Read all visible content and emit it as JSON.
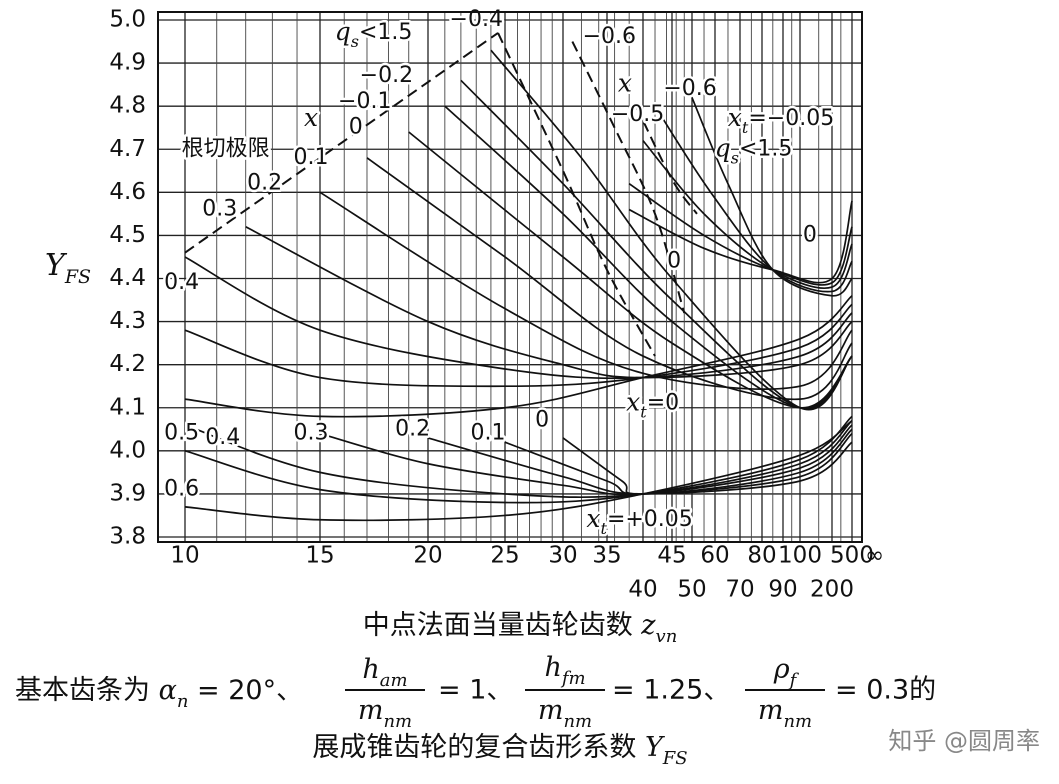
{
  "chart_data": {
    "type": "line",
    "line_color": "#111111",
    "grid": true,
    "xlim": [
      10,
      500
    ],
    "xticks": [
      10,
      15,
      20,
      25,
      30,
      35,
      40,
      45,
      50,
      60,
      70,
      80,
      90,
      100,
      200,
      500
    ],
    "x_minor_ticks": [
      11,
      12,
      13,
      14,
      16,
      17,
      18,
      19,
      21,
      22,
      23,
      24,
      26,
      27,
      28,
      29,
      32,
      34,
      36,
      38,
      42,
      44,
      46,
      48,
      55,
      65,
      75,
      85,
      95,
      150,
      300
    ],
    "x_end_label": "∞",
    "ylim": [
      3.8,
      5.0
    ],
    "yticks": [
      3.8,
      3.9,
      {
        "value": 4,
        "label": "4.0"
      },
      4.1,
      4.2,
      4.3,
      4.4,
      4.5,
      4.6,
      4.7,
      4.8,
      4.9,
      {
        "value": 5,
        "label": "5.0"
      }
    ],
    "ylabel": {
      "var": "Y",
      "sub": "FS"
    },
    "xlabel": {
      "text": "中点法面当量齿轮齿数 ",
      "var": "z",
      "sub": "vn"
    },
    "series": [
      {
        "x": [
          10,
          15,
          25,
          40,
          100,
          500
        ],
        "values": [
          3.87,
          3.84,
          3.85,
          3.9,
          3.99,
          4.07
        ],
        "dashed": false
      },
      {
        "x": [
          10,
          15,
          25,
          40,
          100,
          500
        ],
        "values": [
          4.0,
          3.91,
          3.88,
          3.9,
          3.98,
          4.08
        ],
        "dashed": false
      },
      {
        "x": [
          10,
          15,
          25,
          40,
          100,
          500
        ],
        "values": [
          4.06,
          3.95,
          3.9,
          3.9,
          3.97,
          4.07
        ],
        "dashed": false
      },
      {
        "x": [
          15,
          20,
          30,
          40,
          100,
          500
        ],
        "values": [
          4.04,
          3.97,
          3.92,
          3.9,
          3.96,
          4.06
        ],
        "dashed": false
      },
      {
        "x": [
          20,
          30,
          40,
          100,
          500
        ],
        "values": [
          4.03,
          3.94,
          3.9,
          3.95,
          4.05
        ],
        "dashed": false
      },
      {
        "x": [
          25,
          35,
          40,
          100,
          500
        ],
        "values": [
          4.02,
          3.93,
          3.9,
          3.94,
          4.04
        ],
        "dashed": false
      },
      {
        "x": [
          30,
          37,
          40,
          100,
          500
        ],
        "values": [
          4.03,
          3.93,
          3.9,
          3.93,
          4.02
        ],
        "dashed": false
      },
      {
        "x": [
          10,
          15,
          25,
          40,
          100,
          500
        ],
        "values": [
          4.12,
          4.08,
          4.1,
          4.17,
          4.26,
          4.36
        ],
        "dashed": false
      },
      {
        "x": [
          10,
          15,
          25,
          40,
          100,
          500
        ],
        "values": [
          4.28,
          4.17,
          4.15,
          4.17,
          4.24,
          4.34
        ],
        "dashed": false
      },
      {
        "x": [
          10,
          15,
          25,
          40,
          100,
          500
        ],
        "values": [
          4.45,
          4.28,
          4.19,
          4.17,
          4.22,
          4.32
        ],
        "dashed": false
      },
      {
        "x": [
          12,
          20,
          30,
          40,
          100,
          500
        ],
        "values": [
          4.52,
          4.3,
          4.2,
          4.17,
          4.2,
          4.3
        ],
        "dashed": false
      },
      {
        "x": [
          15,
          25,
          40,
          100,
          500
        ],
        "values": [
          4.6,
          4.33,
          4.18,
          4.15,
          4.28
        ],
        "dashed": false
      },
      {
        "x": [
          17,
          25,
          40,
          100,
          500
        ],
        "values": [
          4.68,
          4.45,
          4.22,
          4.12,
          4.25
        ],
        "dashed": false
      },
      {
        "x": [
          19,
          30,
          45,
          100,
          500
        ],
        "values": [
          4.74,
          4.45,
          4.25,
          4.1,
          4.22
        ],
        "dashed": false
      },
      {
        "x": [
          21,
          30,
          45,
          100,
          500
        ],
        "values": [
          4.8,
          4.55,
          4.3,
          4.1,
          4.22
        ],
        "dashed": false
      },
      {
        "x": [
          22,
          30,
          45,
          100,
          500
        ],
        "values": [
          4.86,
          4.62,
          4.35,
          4.1,
          4.22
        ],
        "dashed": false
      },
      {
        "x": [
          24,
          32,
          45,
          100,
          500
        ],
        "values": [
          4.93,
          4.68,
          4.4,
          4.1,
          4.22
        ],
        "dashed": false
      },
      {
        "x": [
          38,
          55,
          85,
          200,
          500
        ],
        "values": [
          4.56,
          4.47,
          4.42,
          4.4,
          4.58
        ],
        "dashed": false
      },
      {
        "x": [
          38,
          55,
          85,
          200,
          500
        ],
        "values": [
          4.62,
          4.5,
          4.42,
          4.39,
          4.52
        ],
        "dashed": false
      },
      {
        "x": [
          40,
          55,
          85,
          200,
          500
        ],
        "values": [
          4.72,
          4.55,
          4.42,
          4.38,
          4.48
        ],
        "dashed": false
      },
      {
        "x": [
          42,
          58,
          85,
          200,
          500
        ],
        "values": [
          4.8,
          4.6,
          4.42,
          4.37,
          4.44
        ],
        "dashed": false
      },
      {
        "x": [
          50,
          65,
          85,
          200,
          500
        ],
        "values": [
          4.82,
          4.62,
          4.42,
          4.36,
          4.4
        ],
        "dashed": false
      },
      {
        "x": [
          10,
          24.5
        ],
        "values": [
          4.46,
          4.97
        ],
        "dashed": true
      },
      {
        "x": [
          24.5,
          30,
          35,
          42
        ],
        "values": [
          4.97,
          4.65,
          4.42,
          4.22
        ],
        "dashed": true
      },
      {
        "x": [
          31,
          36,
          42,
          48
        ],
        "values": [
          4.95,
          4.75,
          4.55,
          4.32
        ],
        "dashed": true
      },
      {
        "x": [
          39,
          45,
          52
        ],
        "values": [
          4.8,
          4.63,
          4.55
        ],
        "dashed": true
      }
    ],
    "annotations": [
      {
        "var": "q",
        "sub": "s",
        "text": "<1.5",
        "x": 17.3,
        "y": 4.97
      },
      {
        "text": "−0.4",
        "x": 23,
        "y": 5.0
      },
      {
        "text": "−0.6",
        "x": 35.3,
        "y": 4.96
      },
      {
        "text": "−0.2",
        "x": 17.9,
        "y": 4.87
      },
      {
        "text": "−0.1",
        "x": 16.9,
        "y": 4.81
      },
      {
        "var": "x",
        "x": 14.6,
        "y": 4.77
      },
      {
        "text": "0",
        "x": 16.5,
        "y": 4.75
      },
      {
        "text": "根切极限",
        "x": 11.3,
        "y": 4.7
      },
      {
        "text": "0.1",
        "x": 14.6,
        "y": 4.68
      },
      {
        "text": "0.2",
        "x": 12.7,
        "y": 4.62
      },
      {
        "text": "0.3",
        "x": 11.1,
        "y": 4.56
      },
      {
        "text": "0.4",
        "x": 9.9,
        "y": 4.39
      },
      {
        "var": "x",
        "x": 37.4,
        "y": 4.85
      },
      {
        "text": "−0.5",
        "x": 39.2,
        "y": 4.78
      },
      {
        "text": "−0.6",
        "x": 49.5,
        "y": 4.84
      },
      {
        "var": "x",
        "sub": "t",
        "text": "=−0.05",
        "x": 89,
        "y": 4.77
      },
      {
        "var": "q",
        "sub": "s",
        "text": "<1.5",
        "x": 76,
        "y": 4.7
      },
      {
        "text": "0",
        "x": 124,
        "y": 4.5
      },
      {
        "text": "0",
        "x": 45.5,
        "y": 4.44
      },
      {
        "var": "x",
        "sub": "t",
        "text": "=0",
        "x": 41.6,
        "y": 4.11
      },
      {
        "text": "0.5",
        "x": 9.9,
        "y": 4.04
      },
      {
        "text": "0.4",
        "x": 11.2,
        "y": 4.03
      },
      {
        "text": "0.3",
        "x": 14.6,
        "y": 4.04
      },
      {
        "text": "0.2",
        "x": 19.2,
        "y": 4.05
      },
      {
        "text": "0.1",
        "x": 23.8,
        "y": 4.04
      },
      {
        "text": "0",
        "x": 28.1,
        "y": 4.07
      },
      {
        "text": "0.6",
        "x": 9.9,
        "y": 3.91
      },
      {
        "var": "x",
        "sub": "t",
        "text": "=+0.05",
        "x": 39.5,
        "y": 3.84
      }
    ]
  },
  "caption": {
    "lead": "基本齿条为 ",
    "alpha": "α",
    "alpha_sub": "n",
    "alpha_eq": " = 20°、",
    "f1_num": "h",
    "f1_num_sub": "am",
    "f1_den": "m",
    "f1_den_sub": "nm",
    "eq1": "= 1、",
    "f2_num": "h",
    "f2_num_sub": "fm",
    "f2_den": "m",
    "f2_den_sub": "nm",
    "eq2": "= 1.25、",
    "f3_num": "ρ",
    "f3_num_sub": "f",
    "f3_den": "m",
    "f3_den_sub": "nm",
    "eq3": "= 0.3的",
    "line2": "展成锥齿轮的复合齿形系数 ",
    "line2_var": "Y",
    "line2_sub": "FS"
  },
  "watermark": "知乎 @圆周率"
}
